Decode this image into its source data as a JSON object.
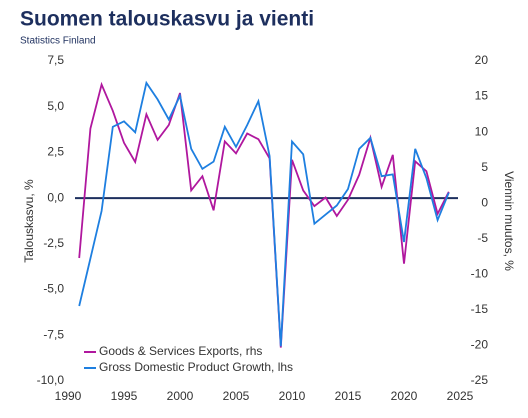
{
  "chart_data": {
    "type": "line",
    "title": "Suomen talouskasvu ja vienti",
    "subtitle": "Statistics Finland",
    "ylabel": "Talouskasvu, %",
    "y2label": "Viennin muutos, %",
    "x": [
      1991,
      1992,
      1993,
      1994,
      1995,
      1996,
      1997,
      1998,
      1999,
      2000,
      2001,
      2002,
      2003,
      2004,
      2005,
      2006,
      2007,
      2008,
      2009,
      2010,
      2011,
      2012,
      2013,
      2014,
      2015,
      2016,
      2017,
      2018,
      2019,
      2020,
      2021,
      2022,
      2023,
      2024
    ],
    "xlim": [
      1990,
      2025
    ],
    "xticks": [
      1990,
      1995,
      2000,
      2005,
      2010,
      2015,
      2020,
      2025
    ],
    "ylim": [
      -10,
      7.5
    ],
    "yticks": [
      {
        "value": 7.5,
        "label": "7,5"
      },
      {
        "value": 5,
        "label": "5,0"
      },
      {
        "value": 2.5,
        "label": "2,5"
      },
      {
        "value": 0,
        "label": "0,0"
      },
      {
        "value": -2.5,
        "label": "-2,5"
      },
      {
        "value": -5,
        "label": "-5,0"
      },
      {
        "value": -7.5,
        "label": "-7,5"
      },
      {
        "value": -10,
        "label": "-10,0"
      }
    ],
    "y2lim": [
      -25,
      20
    ],
    "y2ticks": [
      20,
      15,
      10,
      5,
      0,
      -5,
      -10,
      -15,
      -20,
      -25
    ],
    "zero_line": true,
    "legend": "bottom-left",
    "series": [
      {
        "name": "Goods & Services Exports, rhs",
        "color": "#b0179e",
        "axis": "y2",
        "values": [
          -7.7,
          10.5,
          16.7,
          13,
          8.5,
          5.8,
          12.5,
          8.9,
          11,
          15.5,
          1.8,
          3.8,
          -1,
          8.7,
          7,
          9.8,
          9,
          6.3,
          -20.3,
          6.1,
          1.8,
          -0.4,
          0.8,
          -1.8,
          0.5,
          4,
          9.2,
          2.3,
          6.8,
          -8.5,
          5.9,
          4.5,
          -1.5,
          1.6
        ]
      },
      {
        "name": "Gross Domestic Product Growth, lhs",
        "color": "#1e7fe0",
        "values": [
          -5.9,
          -3.3,
          -0.7,
          3.9,
          4.2,
          3.6,
          6.3,
          5.4,
          4.3,
          5.6,
          2.7,
          1.6,
          2,
          3.9,
          2.8,
          4,
          5.3,
          2.3,
          -8.1,
          3.1,
          2.4,
          -1.4,
          -0.9,
          -0.4,
          0.5,
          2.7,
          3.3,
          1.2,
          1.3,
          -2.4,
          2.7,
          1.1,
          -1.2,
          0.3
        ]
      }
    ]
  }
}
